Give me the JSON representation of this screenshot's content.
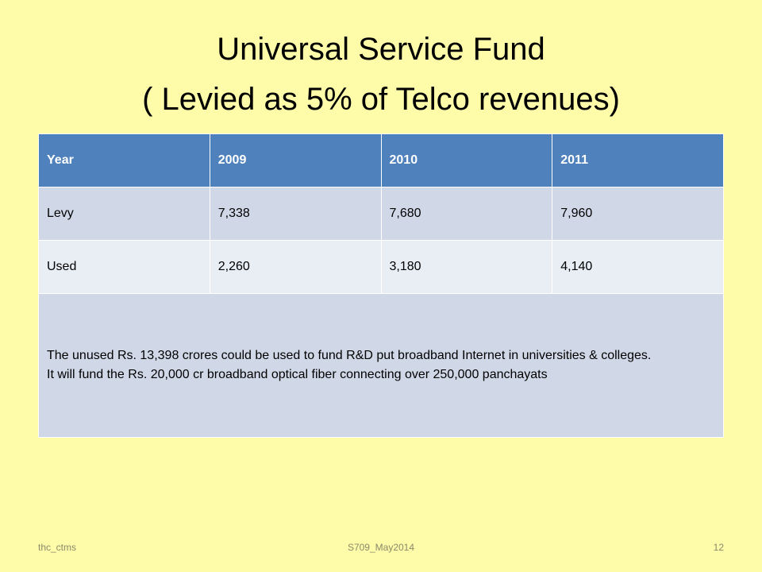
{
  "title": {
    "line1": "Universal Service Fund",
    "line2": "( Levied as 5% of Telco revenues)"
  },
  "table": {
    "header": [
      "Year",
      "2009",
      "2010",
      "2011"
    ],
    "rows": [
      [
        "Levy",
        "7,338",
        "7,680",
        "7,960"
      ],
      [
        "Used",
        "2,260",
        "3,180",
        "4,140"
      ]
    ],
    "note": [
      "The unused Rs. 13,398 crores  could  be  used to fund R&D put broadband Internet  in universities & colleges.",
      "It will fund the  Rs. 20,000 cr broadband optical fiber connecting  over 250,000 panchayats"
    ]
  },
  "footer": {
    "left": "thc_ctms",
    "center": "S709_May2014",
    "right": "12"
  }
}
